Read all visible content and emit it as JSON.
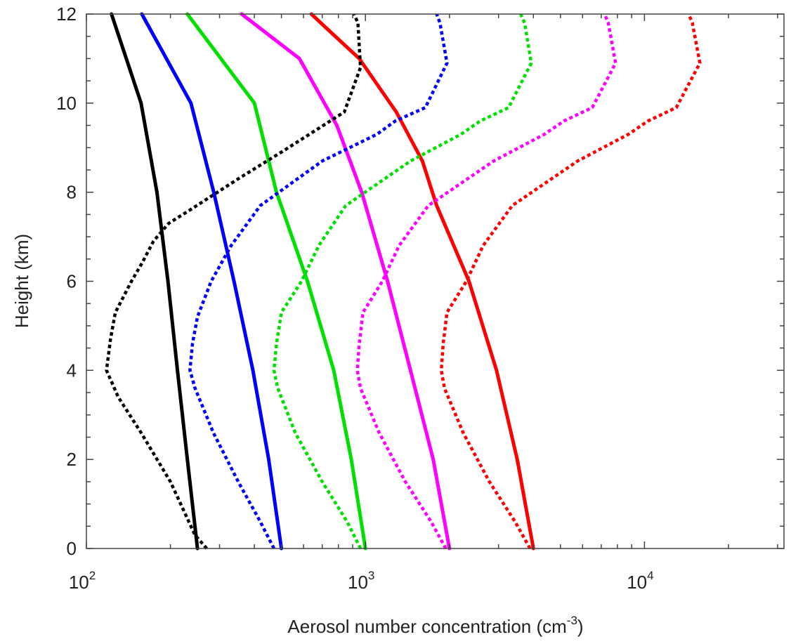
{
  "chart_data": {
    "type": "line",
    "xscale": "log",
    "xlim": [
      100,
      31623
    ],
    "ylim": [
      0,
      12
    ],
    "xlabel": {
      "text": "Aerosol number concentration (cm",
      "superscript": "-3",
      "suffix": ")"
    },
    "ylabel": "Height (km)",
    "x_tick_labels": [
      {
        "value": 100,
        "base": "10",
        "exp": "2"
      },
      {
        "value": 1000,
        "base": "10",
        "exp": "3"
      },
      {
        "value": 10000,
        "base": "10",
        "exp": "4"
      }
    ],
    "y_tick_labels": [
      {
        "value": 0,
        "label": "0"
      },
      {
        "value": 2,
        "label": "2"
      },
      {
        "value": 4,
        "label": "4"
      },
      {
        "value": 6,
        "label": "6"
      },
      {
        "value": 8,
        "label": "8"
      },
      {
        "value": 10,
        "label": "10"
      },
      {
        "value": 12,
        "label": "12"
      }
    ],
    "grid": false,
    "legend": "none",
    "series": [
      {
        "color": "#000000",
        "style": "solid",
        "points": [
          [
            250,
            0
          ],
          [
            230,
            2
          ],
          [
            212,
            4
          ],
          [
            196,
            6
          ],
          [
            179,
            8
          ],
          [
            157,
            10
          ],
          [
            123,
            12
          ]
        ]
      },
      {
        "color": "#0000ff",
        "style": "solid",
        "points": [
          [
            500,
            0
          ],
          [
            450,
            2
          ],
          [
            395,
            4
          ],
          [
            338,
            6
          ],
          [
            286,
            8
          ],
          [
            237,
            10
          ],
          [
            158,
            12
          ]
        ]
      },
      {
        "color": "#00e000",
        "style": "solid",
        "points": [
          [
            1000,
            0
          ],
          [
            890,
            2
          ],
          [
            770,
            4
          ],
          [
            620,
            6
          ],
          [
            480,
            8
          ],
          [
            400,
            10
          ],
          [
            230,
            12
          ]
        ]
      },
      {
        "color": "#ff00ff",
        "style": "solid",
        "points": [
          [
            2000,
            0
          ],
          [
            1750,
            2
          ],
          [
            1450,
            4
          ],
          [
            1200,
            6
          ],
          [
            970,
            8
          ],
          [
            790,
            9.5
          ],
          [
            580,
            11
          ],
          [
            360,
            12
          ]
        ]
      },
      {
        "color": "#ff0000",
        "style": "solid",
        "points": [
          [
            4000,
            0
          ],
          [
            3500,
            2
          ],
          [
            2950,
            4
          ],
          [
            2350,
            6
          ],
          [
            1800,
            7.7
          ],
          [
            1600,
            8.7
          ],
          [
            1290,
            9.8
          ],
          [
            950,
            11
          ],
          [
            720,
            11.7
          ],
          [
            640,
            12
          ]
        ]
      },
      {
        "color": "#000000",
        "style": "dotted",
        "points": [
          [
            270,
            0
          ],
          [
            245,
            0.3
          ],
          [
            200,
            1.5
          ],
          [
            157,
            2.6
          ],
          [
            130,
            3.4
          ],
          [
            118,
            4
          ],
          [
            122,
            4.7
          ],
          [
            127,
            5.3
          ],
          [
            145,
            6
          ],
          [
            158,
            6.4
          ],
          [
            174,
            6.9
          ],
          [
            197,
            7.3
          ],
          [
            235,
            7.6
          ],
          [
            350,
            8.3
          ],
          [
            500,
            8.9
          ],
          [
            840,
            9.8
          ],
          [
            960,
            10.8
          ],
          [
            940,
            11.8
          ],
          [
            910,
            12
          ]
        ]
      },
      {
        "color": "#0000ff",
        "style": "dotted",
        "points": [
          [
            470,
            0
          ],
          [
            420,
            0.6
          ],
          [
            350,
            1.5
          ],
          [
            285,
            2.6
          ],
          [
            245,
            3.6
          ],
          [
            235,
            4
          ],
          [
            240,
            4.6
          ],
          [
            250,
            5.2
          ],
          [
            280,
            6
          ],
          [
            330,
            6.8
          ],
          [
            420,
            7.7
          ],
          [
            700,
            8.7
          ],
          [
            1100,
            9.3
          ],
          [
            1280,
            9.6
          ],
          [
            1640,
            9.9
          ],
          [
            1960,
            10.9
          ],
          [
            1850,
            11.8
          ],
          [
            1800,
            12
          ]
        ]
      },
      {
        "color": "#00e000",
        "style": "dotted",
        "points": [
          [
            960,
            0
          ],
          [
            860,
            0.6
          ],
          [
            700,
            1.5
          ],
          [
            560,
            2.6
          ],
          [
            485,
            3.6
          ],
          [
            470,
            4
          ],
          [
            480,
            4.6
          ],
          [
            500,
            5.3
          ],
          [
            590,
            6
          ],
          [
            680,
            6.8
          ],
          [
            850,
            7.7
          ],
          [
            1450,
            8.7
          ],
          [
            2200,
            9.3
          ],
          [
            2580,
            9.6
          ],
          [
            3260,
            9.9
          ],
          [
            3930,
            10.9
          ],
          [
            3720,
            11.8
          ],
          [
            3600,
            12
          ]
        ]
      },
      {
        "color": "#ff00ff",
        "style": "dotted",
        "points": [
          [
            1940,
            0
          ],
          [
            1720,
            0.6
          ],
          [
            1390,
            1.5
          ],
          [
            1120,
            2.6
          ],
          [
            960,
            3.6
          ],
          [
            935,
            4
          ],
          [
            950,
            4.6
          ],
          [
            980,
            5.3
          ],
          [
            1150,
            6
          ],
          [
            1320,
            6.8
          ],
          [
            1680,
            7.7
          ],
          [
            2880,
            8.7
          ],
          [
            4380,
            9.3
          ],
          [
            5150,
            9.6
          ],
          [
            6500,
            9.9
          ],
          [
            7880,
            10.9
          ],
          [
            7420,
            11.8
          ],
          [
            7200,
            12
          ]
        ]
      },
      {
        "color": "#ff0000",
        "style": "dotted",
        "points": [
          [
            3890,
            0
          ],
          [
            3440,
            0.6
          ],
          [
            2780,
            1.5
          ],
          [
            2240,
            2.6
          ],
          [
            1920,
            3.6
          ],
          [
            1870,
            4
          ],
          [
            1900,
            4.6
          ],
          [
            1960,
            5.3
          ],
          [
            2300,
            6
          ],
          [
            2640,
            6.8
          ],
          [
            3360,
            7.7
          ],
          [
            5760,
            8.7
          ],
          [
            8760,
            9.3
          ],
          [
            10300,
            9.6
          ],
          [
            13000,
            9.9
          ],
          [
            15800,
            10.9
          ],
          [
            14850,
            11.8
          ],
          [
            14400,
            12
          ]
        ]
      }
    ]
  }
}
